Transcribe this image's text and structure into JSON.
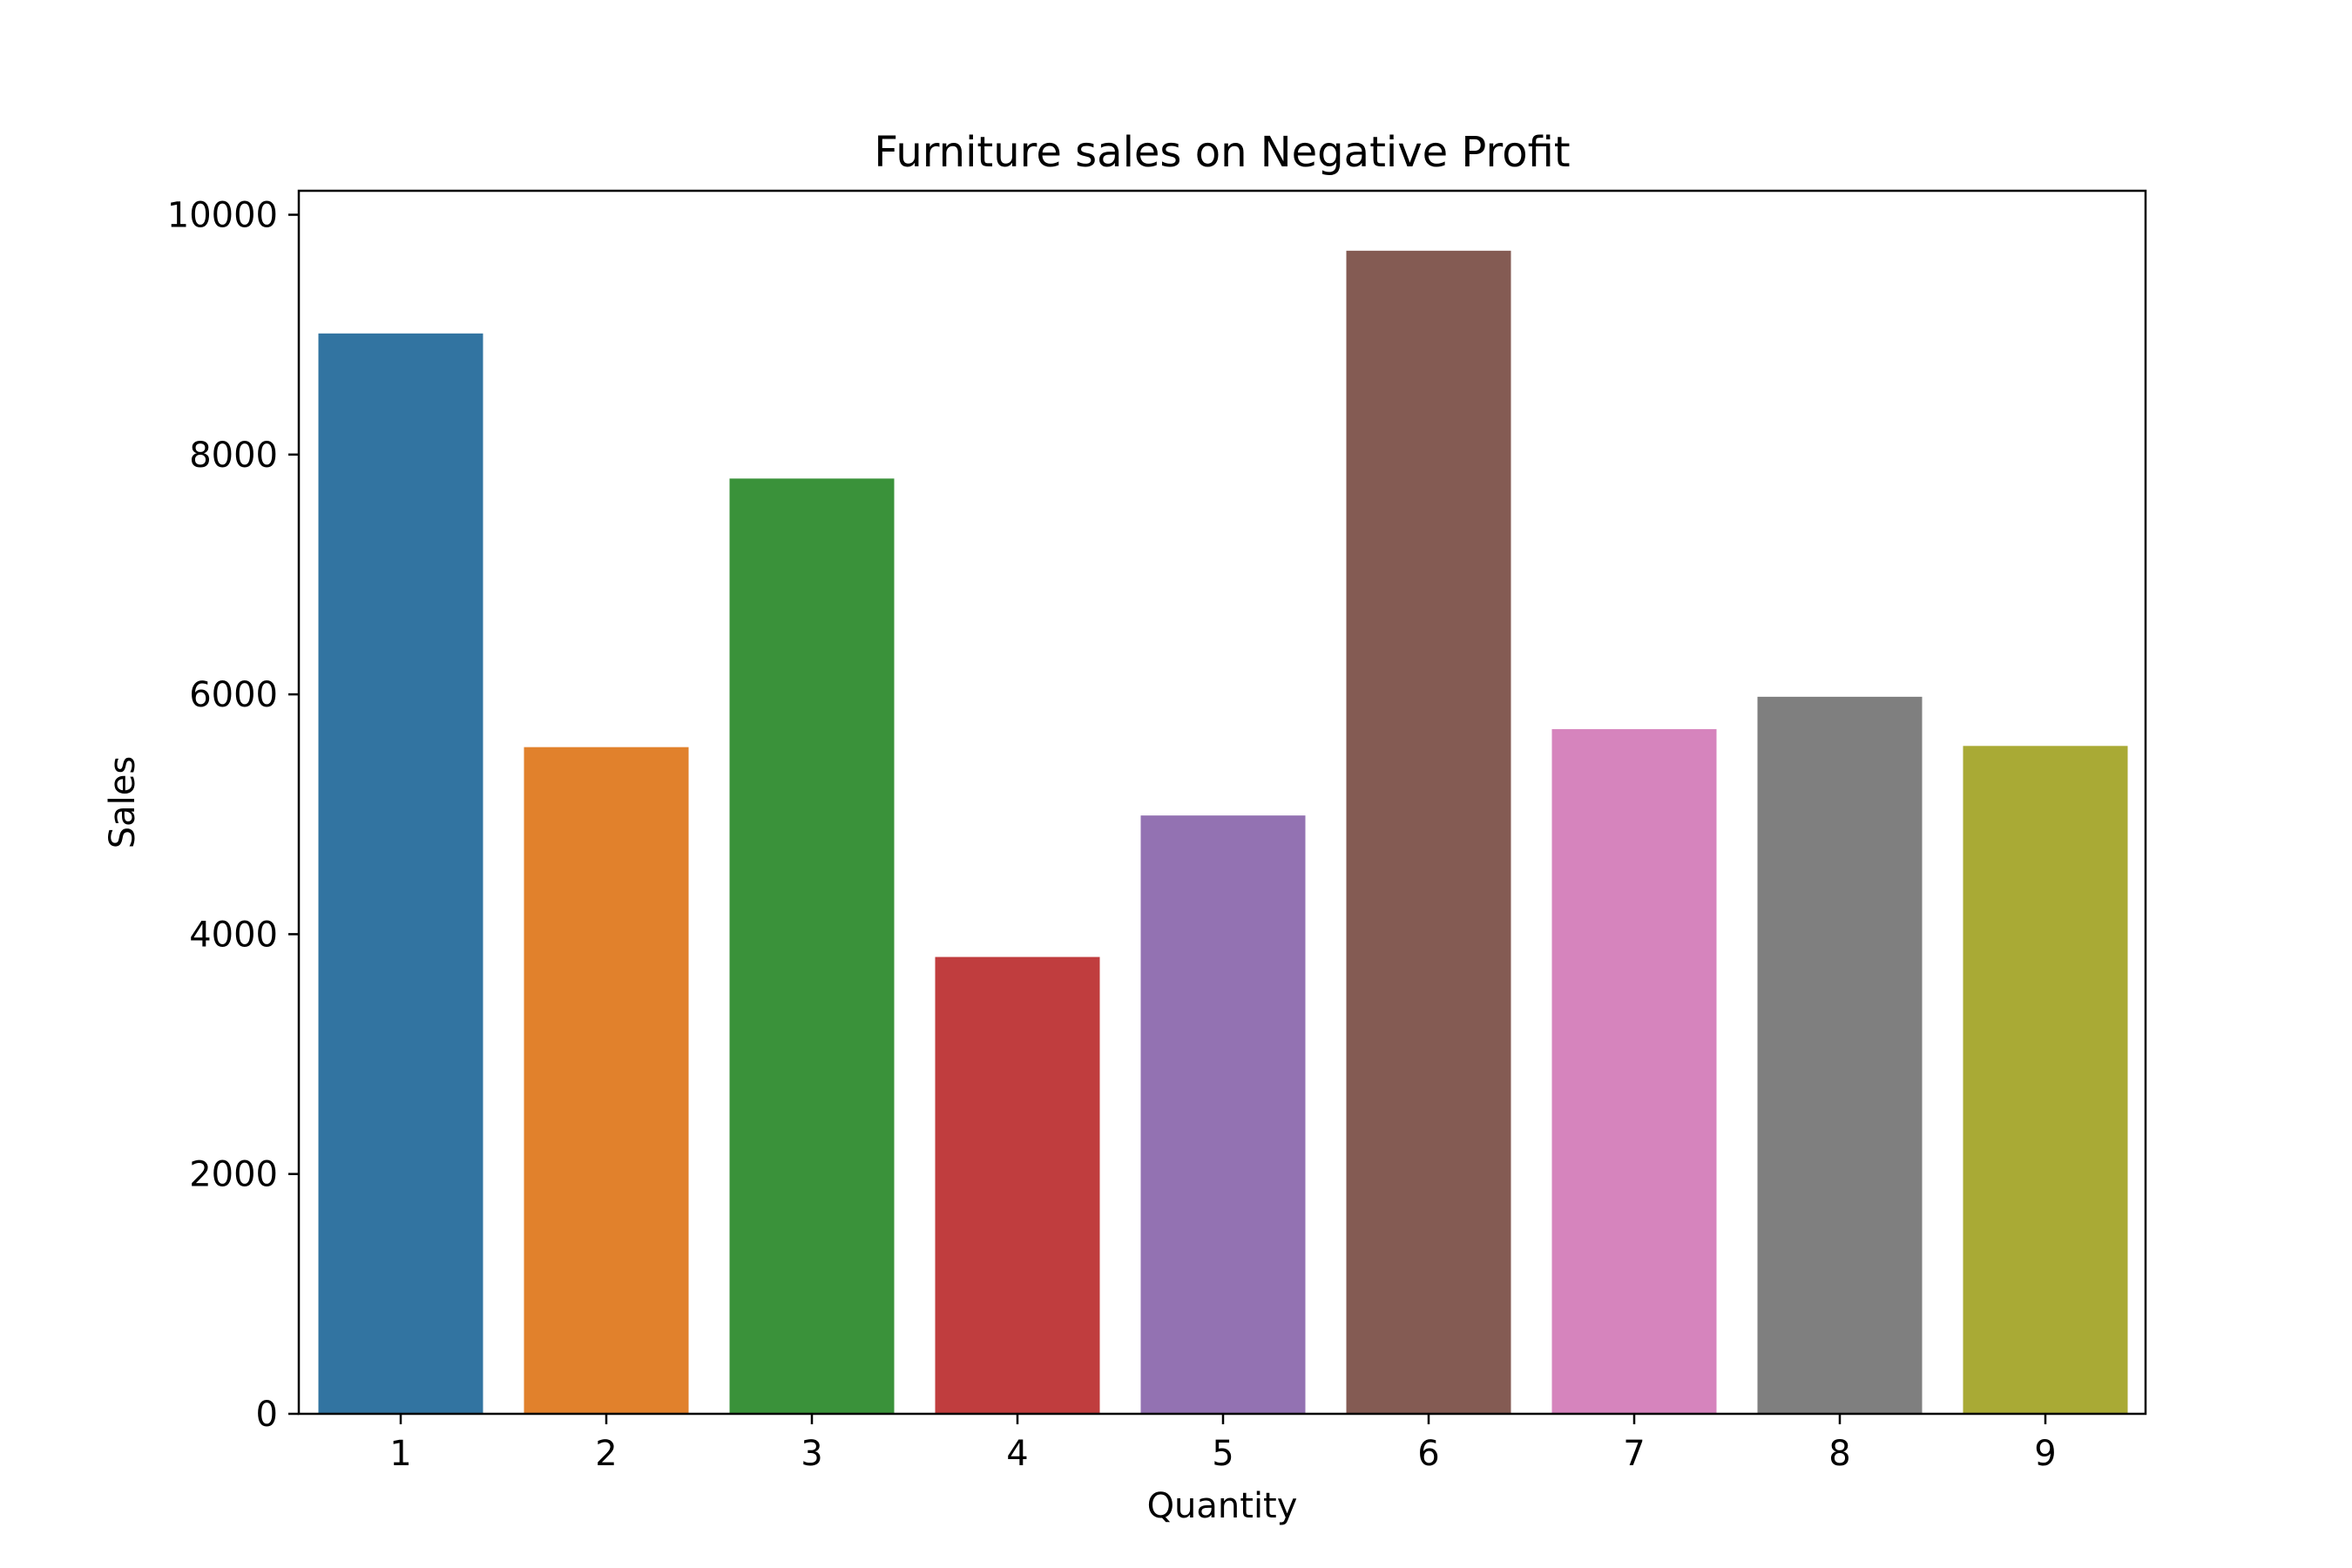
{
  "chart_data": {
    "type": "bar",
    "title": "Furniture sales on Negative Profit",
    "xlabel": "Quantity",
    "ylabel": "Sales",
    "categories": [
      "1",
      "2",
      "3",
      "4",
      "5",
      "6",
      "7",
      "8",
      "9"
    ],
    "values": [
      9010,
      5560,
      7800,
      3810,
      4990,
      9700,
      5710,
      5980,
      5570
    ],
    "colors": [
      "#3274a1",
      "#e1812c",
      "#3a923a",
      "#c03d3e",
      "#9372b2",
      "#845b53",
      "#d684bd",
      "#7f7f7f",
      "#a9aa35"
    ],
    "ylim": [
      0,
      10200
    ],
    "yticks": [
      0,
      2000,
      4000,
      6000,
      8000,
      10000
    ],
    "ytick_labels": [
      "0",
      "2000",
      "4000",
      "6000",
      "8000",
      "10000"
    ],
    "grid": false,
    "legend": "none"
  }
}
